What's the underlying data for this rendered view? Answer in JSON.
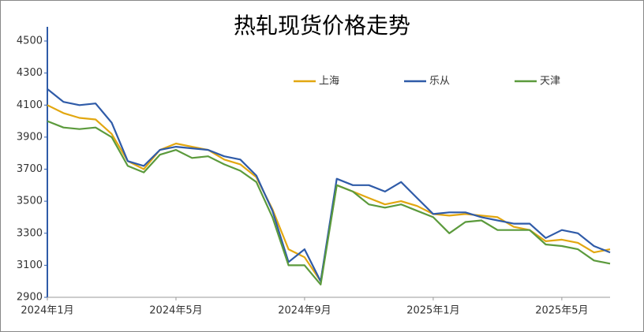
{
  "chart_data": {
    "type": "line",
    "title": "热轧现货价格走势",
    "categories": [
      "2024年1月",
      null,
      null,
      null,
      null,
      null,
      null,
      null,
      "2024年5月",
      null,
      null,
      null,
      null,
      null,
      null,
      null,
      "2024年9月",
      null,
      null,
      null,
      null,
      null,
      null,
      null,
      "2025年1月",
      null,
      null,
      null,
      null,
      null,
      null,
      null,
      "2025年5月",
      null,
      null,
      null
    ],
    "series": [
      {
        "name": "上海",
        "color": "#e2a710",
        "values": [
          4100,
          4050,
          4020,
          4010,
          3920,
          3750,
          3700,
          3820,
          3860,
          3840,
          3820,
          3760,
          3730,
          3650,
          3450,
          3200,
          3150,
          3000,
          3600,
          3560,
          3520,
          3480,
          3500,
          3470,
          3420,
          3410,
          3420,
          3410,
          3400,
          3340,
          3320,
          3250,
          3260,
          3240,
          3180,
          3200
        ]
      },
      {
        "name": "乐从",
        "color": "#2f5ba8",
        "values": [
          4200,
          4120,
          4100,
          4110,
          3990,
          3750,
          3720,
          3820,
          3840,
          3830,
          3820,
          3780,
          3760,
          3660,
          3440,
          3120,
          3200,
          3000,
          3640,
          3600,
          3600,
          3560,
          3620,
          3520,
          3420,
          3430,
          3430,
          3400,
          3380,
          3360,
          3360,
          3270,
          3320,
          3300,
          3220,
          3180
        ]
      },
      {
        "name": "天津",
        "color": "#5b9a3c",
        "values": [
          4000,
          3960,
          3950,
          3960,
          3900,
          3720,
          3680,
          3790,
          3820,
          3770,
          3780,
          3730,
          3690,
          3620,
          3400,
          3100,
          3100,
          2980,
          3600,
          3560,
          3480,
          3460,
          3480,
          3440,
          3400,
          3300,
          3370,
          3380,
          3320,
          3320,
          3320,
          3230,
          3220,
          3200,
          3130,
          3110
        ]
      }
    ],
    "ylim": [
      2900,
      4500
    ],
    "yticks": [
      2900,
      3100,
      3300,
      3500,
      3700,
      3900,
      4100,
      4300,
      4500
    ]
  }
}
